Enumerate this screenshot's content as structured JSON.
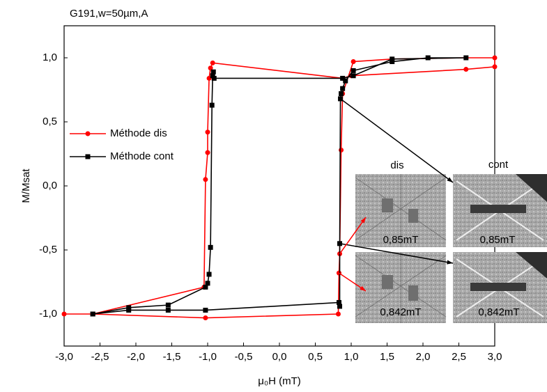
{
  "chart_data": {
    "type": "line",
    "title": "G191,w=50µm,A",
    "xlabel": "μ₀H (mT)",
    "ylabel": "M/Msat",
    "xlim": [
      -3.0,
      3.0
    ],
    "ylim": [
      -1.25,
      1.25
    ],
    "xticks": [
      {
        "value": -3.0,
        "label": "-3,0"
      },
      {
        "value": -2.5,
        "label": "-2,5"
      },
      {
        "value": -2.0,
        "label": "-2,0"
      },
      {
        "value": -1.5,
        "label": "-1,5"
      },
      {
        "value": -1.0,
        "label": "-1,0"
      },
      {
        "value": -0.5,
        "label": "-0,5"
      },
      {
        "value": 0,
        "label": "0,0"
      },
      {
        "value": 0.5,
        "label": "0,5"
      },
      {
        "value": 1.0,
        "label": "1,0"
      },
      {
        "value": 1.5,
        "label": "1,5"
      },
      {
        "value": 2.0,
        "label": "2,0"
      },
      {
        "value": 2.5,
        "label": "2,5"
      },
      {
        "value": 3.0,
        "label": "3,0"
      }
    ],
    "yticks": [
      {
        "value": -1.0,
        "label": "-1,0"
      },
      {
        "value": -0.5,
        "label": "-0,5"
      },
      {
        "value": 0,
        "label": "0,0"
      },
      {
        "value": 0.5,
        "label": "0,5"
      },
      {
        "value": 1.0,
        "label": "1,0"
      }
    ],
    "legend": "left",
    "series": [
      {
        "name": "Méthode dis",
        "color": "#ff0000",
        "marker": "circle",
        "x": [
          -3.0,
          -2.6,
          -1.03,
          0.82,
          0.83,
          0.84,
          0.86,
          0.88,
          1.03,
          1.57,
          2.6,
          3.0,
          3.0,
          2.6,
          1.0,
          0.88,
          -0.93,
          -0.96,
          -0.98,
          -1.0,
          -1.0,
          -1.03,
          -1.05,
          -2.6
        ],
        "values": [
          -1.0,
          -1.0,
          -1.03,
          -1.0,
          -0.68,
          -0.53,
          0.28,
          0.72,
          0.97,
          0.99,
          1.0,
          1.0,
          0.93,
          0.91,
          0.86,
          0.84,
          0.96,
          0.92,
          0.84,
          0.42,
          0.26,
          0.05,
          -0.79,
          -1.0
        ]
      },
      {
        "name": "Méthode cont",
        "color": "#000000",
        "marker": "square",
        "x": [
          -2.6,
          -2.1,
          -1.55,
          -1.03,
          0.83,
          0.84,
          0.84,
          0.85,
          0.86,
          0.88,
          0.92,
          1.03,
          1.57,
          2.07,
          2.6,
          1.57,
          1.03,
          0.88,
          -0.91,
          -0.92,
          -0.93,
          -0.94,
          -0.96,
          -0.98,
          -1.0,
          -1.03,
          -1.55,
          -2.1,
          -2.6
        ],
        "values": [
          -1.0,
          -0.97,
          -0.97,
          -0.97,
          -0.91,
          -0.94,
          -0.45,
          0.68,
          0.72,
          0.76,
          0.82,
          0.9,
          0.97,
          1.0,
          1.0,
          0.99,
          0.86,
          0.84,
          0.84,
          0.89,
          0.86,
          0.63,
          -0.48,
          -0.69,
          -0.76,
          -0.79,
          -0.93,
          -0.95,
          -1.0
        ]
      }
    ],
    "insets": {
      "headers": [
        "dis",
        "cont"
      ],
      "labels": [
        "0,85mT",
        "0,85mT",
        "0,842mT",
        "0,842mT"
      ]
    }
  }
}
